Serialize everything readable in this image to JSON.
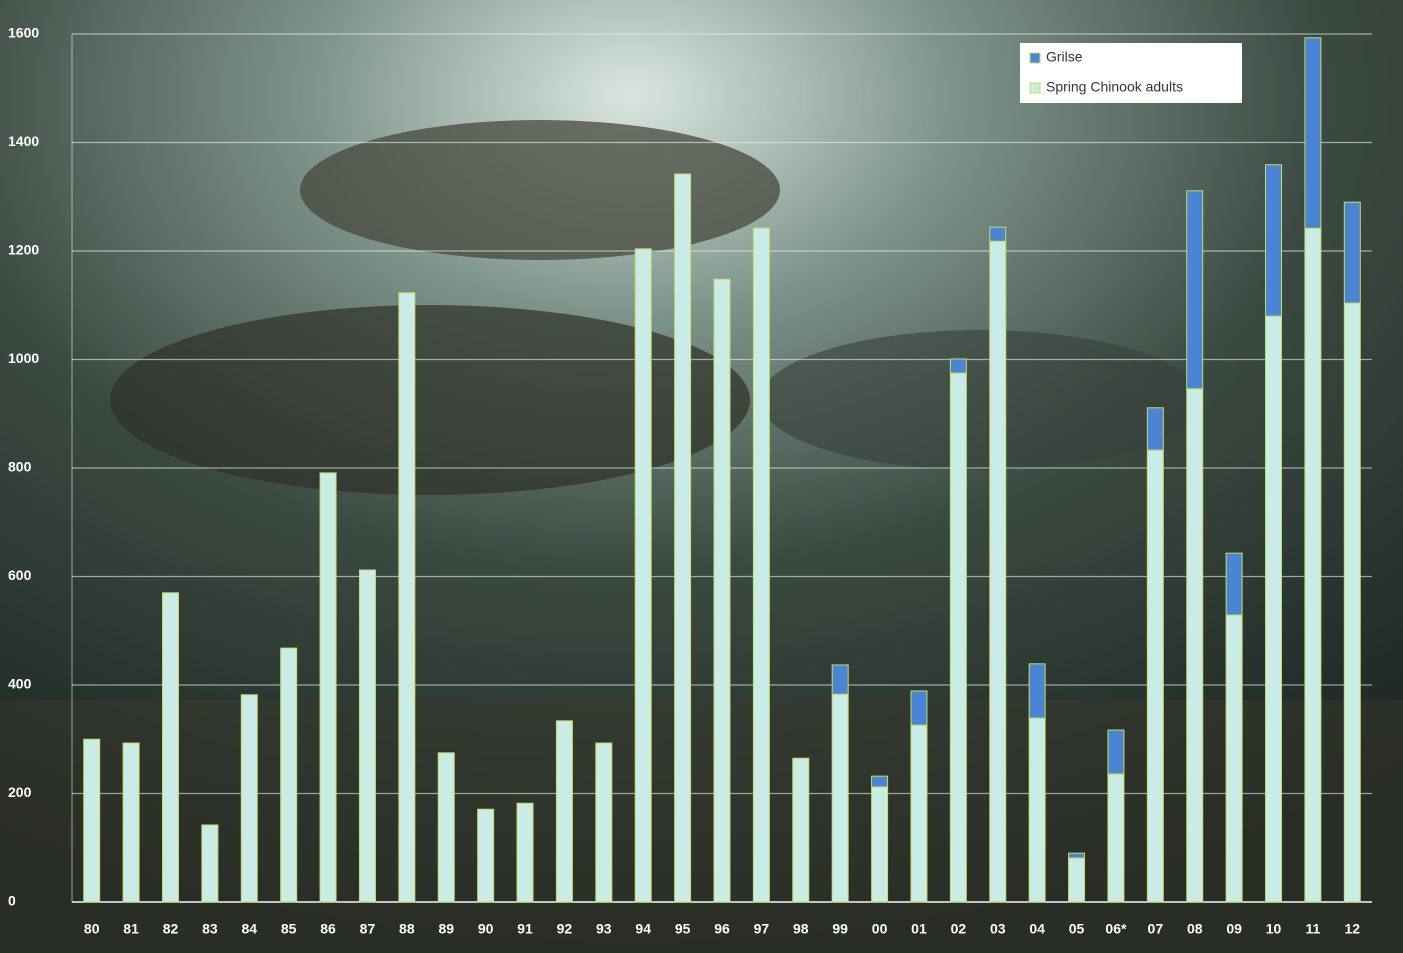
{
  "chart_data": {
    "type": "stacked-bar",
    "categories": [
      "80",
      "81",
      "82",
      "83",
      "84",
      "85",
      "86",
      "87",
      "88",
      "89",
      "90",
      "91",
      "92",
      "93",
      "94",
      "95",
      "96",
      "97",
      "98",
      "99",
      "00",
      "01",
      "02",
      "03",
      "04",
      "05",
      "06*",
      "07",
      "08",
      "09",
      "10",
      "11",
      "12"
    ],
    "series": [
      {
        "name": "Spring Chinook adults",
        "color": "#c9ece6",
        "values": [
          300,
          293,
          570,
          142,
          382,
          468,
          791,
          612,
          1123,
          275,
          171,
          182,
          334,
          293,
          1204,
          1342,
          1148,
          1242,
          265,
          383,
          212,
          326,
          975,
          1218,
          339,
          81,
          236,
          833,
          946,
          529,
          1080,
          1242,
          1104
        ]
      },
      {
        "name": "Grilse",
        "color": "#4a84d4",
        "values": [
          0,
          0,
          0,
          0,
          0,
          0,
          0,
          0,
          0,
          0,
          0,
          0,
          0,
          0,
          0,
          0,
          0,
          0,
          0,
          54,
          20,
          63,
          26,
          26,
          100,
          9,
          81,
          78,
          365,
          114,
          279,
          351,
          186
        ]
      }
    ],
    "ylim": [
      0,
      1600
    ],
    "yticks": [
      0,
      200,
      400,
      600,
      800,
      1000,
      1200,
      1400,
      1600
    ],
    "grid": true
  }
}
